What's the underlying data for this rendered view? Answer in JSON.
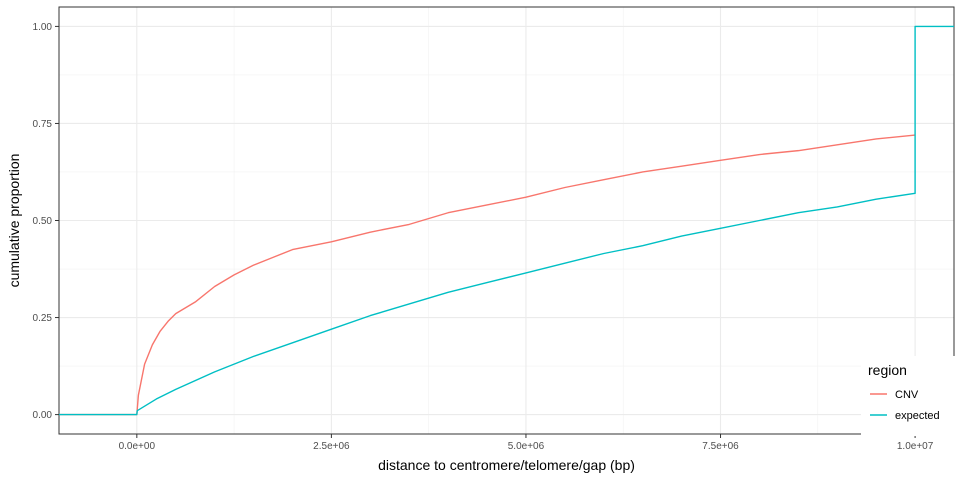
{
  "chart_data": {
    "type": "line",
    "xlabel": "distance to centromere/telomere/gap (bp)",
    "ylabel": "cumulative proportion",
    "xlim": [
      -1000000,
      10500000
    ],
    "ylim": [
      -0.05,
      1.05
    ],
    "x_ticks": [
      0,
      2500000,
      5000000,
      7500000,
      10000000
    ],
    "x_tick_labels": [
      "0.0e+00",
      "2.5e+06",
      "5.0e+06",
      "7.5e+06",
      "1.0e+07"
    ],
    "y_ticks": [
      0,
      0.25,
      0.5,
      0.75,
      1.0
    ],
    "y_tick_labels": [
      "0.00",
      "0.25",
      "0.50",
      "0.75",
      "1.00"
    ],
    "grid": true,
    "legend": {
      "title": "region",
      "position": "bottom-right",
      "entries": [
        {
          "label": "CNV",
          "color": "#F8766D"
        },
        {
          "label": "expected",
          "color": "#00BFC4"
        }
      ]
    },
    "series": [
      {
        "name": "CNV",
        "color": "#F8766D",
        "points": [
          [
            -1000000,
            0.0
          ],
          [
            0,
            0.0
          ],
          [
            20000,
            0.05
          ],
          [
            100000,
            0.13
          ],
          [
            200000,
            0.18
          ],
          [
            300000,
            0.215
          ],
          [
            400000,
            0.24
          ],
          [
            500000,
            0.26
          ],
          [
            750000,
            0.29
          ],
          [
            1000000,
            0.33
          ],
          [
            1250000,
            0.36
          ],
          [
            1500000,
            0.385
          ],
          [
            1750000,
            0.405
          ],
          [
            2000000,
            0.425
          ],
          [
            2500000,
            0.445
          ],
          [
            3000000,
            0.47
          ],
          [
            3500000,
            0.49
          ],
          [
            4000000,
            0.52
          ],
          [
            4500000,
            0.54
          ],
          [
            5000000,
            0.56
          ],
          [
            5500000,
            0.585
          ],
          [
            6000000,
            0.605
          ],
          [
            6500000,
            0.625
          ],
          [
            7000000,
            0.64
          ],
          [
            7500000,
            0.655
          ],
          [
            8000000,
            0.67
          ],
          [
            8500000,
            0.68
          ],
          [
            9000000,
            0.695
          ],
          [
            9500000,
            0.71
          ],
          [
            10000000,
            0.72
          ]
        ]
      },
      {
        "name": "expected",
        "color": "#00BFC4",
        "points": [
          [
            -1000000,
            0.0
          ],
          [
            0,
            0.0
          ],
          [
            5000,
            0.01
          ],
          [
            250000,
            0.04
          ],
          [
            500000,
            0.065
          ],
          [
            1000000,
            0.11
          ],
          [
            1500000,
            0.15
          ],
          [
            2000000,
            0.185
          ],
          [
            2500000,
            0.22
          ],
          [
            3000000,
            0.255
          ],
          [
            3500000,
            0.285
          ],
          [
            4000000,
            0.315
          ],
          [
            4500000,
            0.34
          ],
          [
            5000000,
            0.365
          ],
          [
            5500000,
            0.39
          ],
          [
            6000000,
            0.415
          ],
          [
            6500000,
            0.435
          ],
          [
            7000000,
            0.46
          ],
          [
            7500000,
            0.48
          ],
          [
            8000000,
            0.5
          ],
          [
            8500000,
            0.52
          ],
          [
            9000000,
            0.535
          ],
          [
            9500000,
            0.555
          ],
          [
            10000000,
            0.57
          ],
          [
            10000000,
            1.0
          ],
          [
            10500000,
            1.0
          ]
        ]
      }
    ]
  }
}
